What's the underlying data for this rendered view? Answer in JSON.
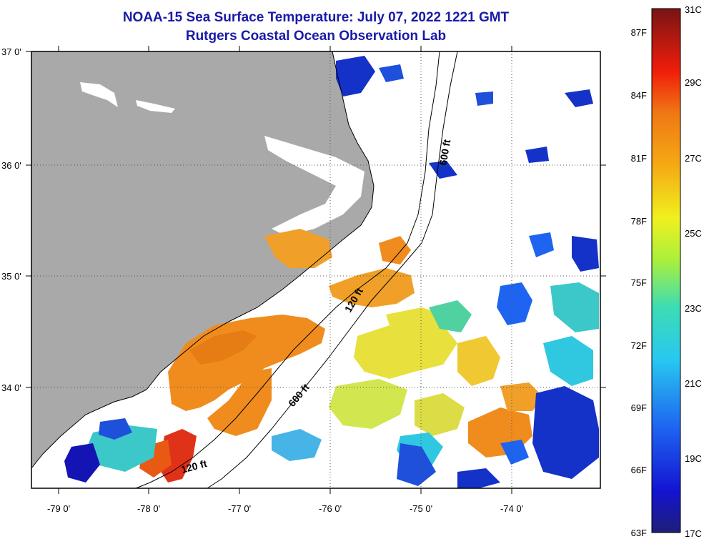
{
  "title": {
    "line1": "NOAA-15 Sea Surface Temperature:  July 07, 2022 1221 GMT",
    "line2": "Rutgers Coastal Ocean Observation Lab"
  },
  "axes": {
    "lon_labels": [
      "-79 0'",
      "-78 0'",
      "-77 0'",
      "-76 0'",
      "-75 0'",
      "-74 0'"
    ],
    "lat_labels": [
      "37 0'",
      "36 0'",
      "35 0'",
      "34 0'"
    ]
  },
  "contours": {
    "labels": [
      "600 ft",
      "120 ft",
      "600 ft",
      "120 ft"
    ]
  },
  "colorbar": {
    "f_labels": [
      "87F",
      "84F",
      "81F",
      "78F",
      "75F",
      "72F",
      "69F",
      "66F",
      "63F"
    ],
    "c_labels": [
      "31C",
      "29C",
      "27C",
      "25C",
      "23C",
      "21C",
      "19C",
      "17C"
    ]
  },
  "colors": {
    "land": "#a9a9a9",
    "cloud": "#ffffff",
    "title": "#1a1aa8",
    "warm_orange": "#f08c1e",
    "yellow": "#f0e040",
    "cyan": "#30c8e0",
    "blue": "#1432c8",
    "red": "#e03218"
  }
}
